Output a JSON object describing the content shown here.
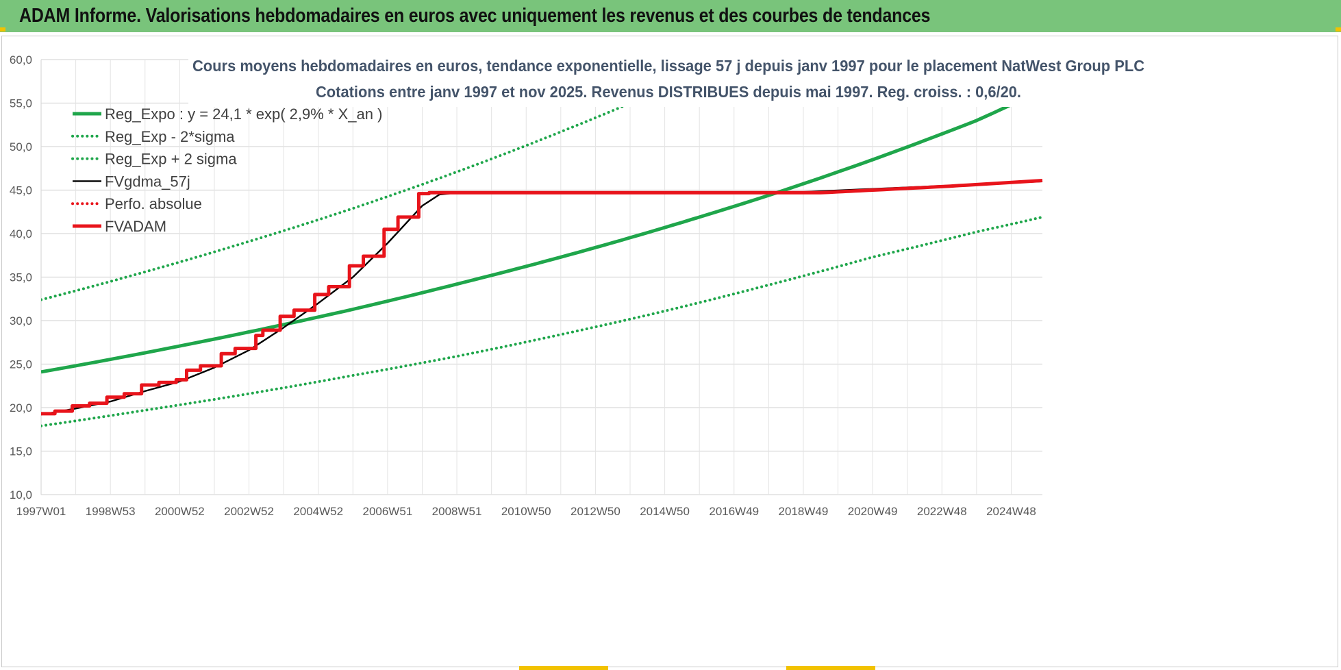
{
  "banner": {
    "title": "ADAM Informe. Valorisations hebdomadaires en euros avec uniquement les revenus et des courbes de tendances"
  },
  "chart_data": {
    "type": "line",
    "title_line1": "Cours moyens hebdomadaires en euros, tendance exponentielle, lissage 57 j depuis janv 1997 pour le placement NatWest Group PLC",
    "title_line2": "Cotations entre janv 1997 et nov 2025. Revenus DISTRIBUES depuis mai 1997. Reg. croiss. : 0,6/20.",
    "x_range": [
      1997.0,
      2025.9
    ],
    "ylim": [
      10,
      60
    ],
    "y_ticks": [
      "10,0",
      "15,0",
      "20,0",
      "25,0",
      "30,0",
      "35,0",
      "40,0",
      "45,0",
      "50,0",
      "55,0",
      "60,0"
    ],
    "x_ticks": [
      {
        "label": "1997W01",
        "x": 1997.0
      },
      {
        "label": "1998W53",
        "x": 1999.0
      },
      {
        "label": "2000W52",
        "x": 2001.0
      },
      {
        "label": "2002W52",
        "x": 2003.0
      },
      {
        "label": "2004W52",
        "x": 2005.0
      },
      {
        "label": "2006W51",
        "x": 2007.0
      },
      {
        "label": "2008W51",
        "x": 2009.0
      },
      {
        "label": "2010W50",
        "x": 2011.0
      },
      {
        "label": "2012W50",
        "x": 2013.0
      },
      {
        "label": "2014W50",
        "x": 2015.0
      },
      {
        "label": "2016W49",
        "x": 2017.0
      },
      {
        "label": "2018W49",
        "x": 2019.0
      },
      {
        "label": "2020W49",
        "x": 2021.0
      },
      {
        "label": "2022W48",
        "x": 2023.0
      },
      {
        "label": "2024W48",
        "x": 2025.0
      }
    ],
    "grid": true,
    "legend_position": "top-left",
    "series": [
      {
        "name": "Reg_Expo : y = 24,1 * exp( 2,9% *  X_an )",
        "style": "solid-thick",
        "color": "#1fa64b",
        "points": [
          [
            1997.0,
            24.1
          ],
          [
            2000.0,
            26.3
          ],
          [
            2003.0,
            28.7
          ],
          [
            2006.0,
            31.3
          ],
          [
            2009.0,
            34.2
          ],
          [
            2012.0,
            37.3
          ],
          [
            2015.0,
            40.7
          ],
          [
            2018.0,
            44.4
          ],
          [
            2021.0,
            48.5
          ],
          [
            2024.0,
            53.0
          ],
          [
            2025.9,
            56.5
          ]
        ]
      },
      {
        "name": "Reg_Exp - 2*sigma",
        "style": "dotted",
        "color": "#1fa64b",
        "points": [
          [
            1997.0,
            17.9
          ],
          [
            2000.0,
            19.7
          ],
          [
            2003.0,
            21.6
          ],
          [
            2006.0,
            23.7
          ],
          [
            2009.0,
            25.9
          ],
          [
            2012.0,
            28.4
          ],
          [
            2015.0,
            31.1
          ],
          [
            2018.0,
            34.1
          ],
          [
            2021.0,
            37.3
          ],
          [
            2024.0,
            40.2
          ],
          [
            2025.9,
            41.9
          ]
        ]
      },
      {
        "name": "Reg_Exp + 2 sigma",
        "style": "dotted",
        "color": "#1fa64b",
        "points": [
          [
            1997.0,
            32.4
          ],
          [
            2000.0,
            35.6
          ],
          [
            2003.0,
            39.1
          ],
          [
            2006.0,
            42.9
          ],
          [
            2009.0,
            47.1
          ],
          [
            2012.0,
            51.7
          ],
          [
            2015.0,
            56.7
          ],
          [
            2017.0,
            60.5
          ]
        ]
      },
      {
        "name": "FVgdma_57j",
        "style": "solid",
        "color": "#000000",
        "points": [
          [
            1997.0,
            19.2
          ],
          [
            1998.0,
            19.9
          ],
          [
            1999.0,
            20.7
          ],
          [
            2000.0,
            21.9
          ],
          [
            2001.0,
            23.0
          ],
          [
            2002.0,
            24.6
          ],
          [
            2003.0,
            26.6
          ],
          [
            2004.0,
            29.2
          ],
          [
            2005.0,
            32.0
          ],
          [
            2006.0,
            35.0
          ],
          [
            2007.0,
            38.9
          ],
          [
            2008.0,
            43.2
          ],
          [
            2008.5,
            44.5
          ],
          [
            2009.0,
            44.7
          ],
          [
            2018.5,
            44.7
          ],
          [
            2025.9,
            46.0
          ]
        ]
      },
      {
        "name": "Perfo. absolue",
        "style": "dotted",
        "color": "#e8141b",
        "points": []
      },
      {
        "name": "FVADAM",
        "style": "solid-thick",
        "color": "#e8141b",
        "steps": [
          [
            1997.0,
            19.3
          ],
          [
            1997.4,
            19.6
          ],
          [
            1997.9,
            20.2
          ],
          [
            1998.4,
            20.5
          ],
          [
            1998.9,
            21.2
          ],
          [
            1999.4,
            21.6
          ],
          [
            1999.9,
            22.6
          ],
          [
            2000.4,
            22.9
          ],
          [
            2000.9,
            23.2
          ],
          [
            2001.2,
            24.3
          ],
          [
            2001.6,
            24.8
          ],
          [
            2002.2,
            26.2
          ],
          [
            2002.6,
            26.8
          ],
          [
            2003.2,
            28.3
          ],
          [
            2003.4,
            28.9
          ],
          [
            2003.9,
            30.5
          ],
          [
            2004.3,
            31.2
          ],
          [
            2004.9,
            33.0
          ],
          [
            2005.3,
            33.9
          ],
          [
            2005.9,
            36.3
          ],
          [
            2006.3,
            37.4
          ],
          [
            2006.9,
            40.5
          ],
          [
            2007.3,
            41.9
          ],
          [
            2007.9,
            44.6
          ],
          [
            2008.2,
            44.7
          ],
          [
            2019.5,
            44.7
          ]
        ],
        "points": [
          [
            2019.5,
            44.7
          ],
          [
            2021.0,
            45.0
          ],
          [
            2023.0,
            45.4
          ],
          [
            2025.9,
            46.1
          ]
        ]
      }
    ]
  }
}
